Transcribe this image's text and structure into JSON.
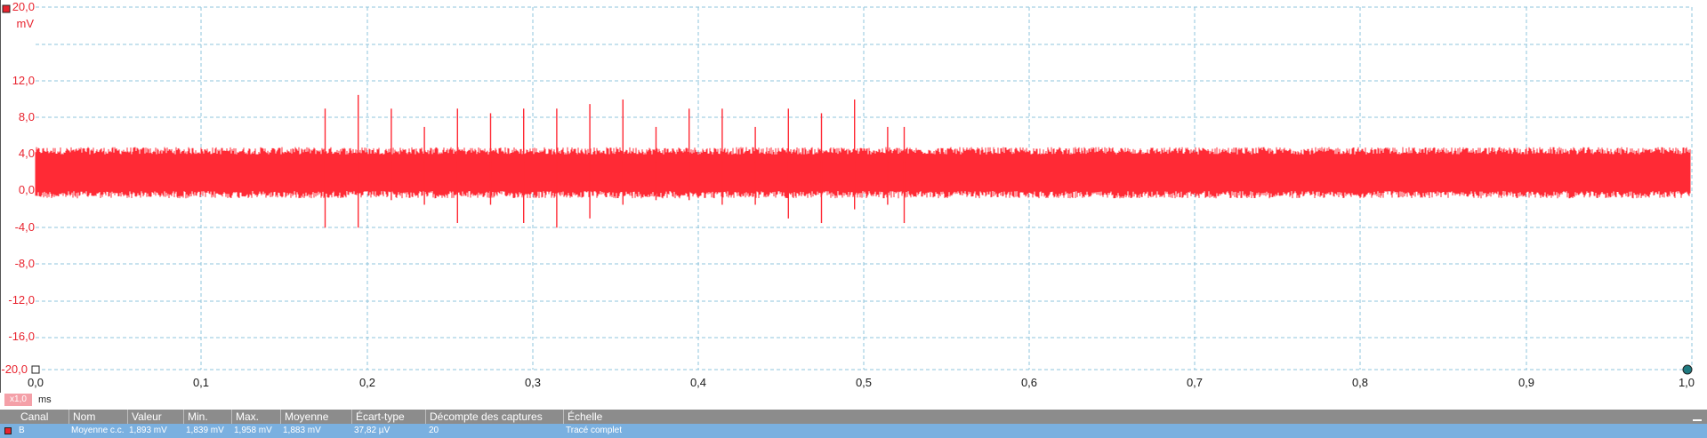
{
  "scope": {
    "y_unit": "mV",
    "x_unit": "ms",
    "zoom": "x1,0",
    "colors": {
      "trace": "#ff2a35",
      "axis_text": "#e8232e",
      "grid": "#8fc4dc",
      "header_bg": "#8c8c8c",
      "row_bg": "#7ab0e0"
    },
    "y_ticks": [
      "20,0",
      "12,0",
      "8,0",
      "4,0",
      "0,0",
      "-4,0",
      "-8,0",
      "-12,0",
      "-16,0",
      "-20,0"
    ],
    "x_ticks": [
      "0,0",
      "0,1",
      "0,2",
      "0,3",
      "0,4",
      "0,5",
      "0,6",
      "0,7",
      "0,8",
      "0,9",
      "1,0"
    ]
  },
  "chart_data": {
    "type": "line",
    "xlabel": "ms",
    "ylabel": "mV",
    "xlim": [
      0,
      1
    ],
    "ylim": [
      -20,
      20
    ],
    "grid": true,
    "series": [
      {
        "name": "B",
        "baseline_band": [
          0.0,
          4.0
        ],
        "mean": 1.883,
        "spikes": [
          {
            "x": 0.175,
            "y_max": 9.0,
            "y_min": -4.0
          },
          {
            "x": 0.195,
            "y_max": 10.5,
            "y_min": -4.0
          },
          {
            "x": 0.215,
            "y_max": 9.0,
            "y_min": -1.0
          },
          {
            "x": 0.235,
            "y_max": 7.0,
            "y_min": -1.5
          },
          {
            "x": 0.255,
            "y_max": 9.0,
            "y_min": -3.5
          },
          {
            "x": 0.275,
            "y_max": 8.5,
            "y_min": -1.5
          },
          {
            "x": 0.295,
            "y_max": 9.0,
            "y_min": -3.5
          },
          {
            "x": 0.315,
            "y_max": 9.0,
            "y_min": -4.0
          },
          {
            "x": 0.335,
            "y_max": 9.5,
            "y_min": -3.0
          },
          {
            "x": 0.355,
            "y_max": 10.0,
            "y_min": -1.5
          },
          {
            "x": 0.375,
            "y_max": 7.0,
            "y_min": -1.0
          },
          {
            "x": 0.395,
            "y_max": 9.0,
            "y_min": -1.0
          },
          {
            "x": 0.415,
            "y_max": 9.0,
            "y_min": -1.5
          },
          {
            "x": 0.435,
            "y_max": 7.0,
            "y_min": -1.5
          },
          {
            "x": 0.455,
            "y_max": 9.0,
            "y_min": -3.0
          },
          {
            "x": 0.475,
            "y_max": 8.5,
            "y_min": -3.5
          },
          {
            "x": 0.495,
            "y_max": 10.0,
            "y_min": -2.0
          },
          {
            "x": 0.515,
            "y_max": 7.0,
            "y_min": -1.5
          },
          {
            "x": 0.525,
            "y_max": 7.0,
            "y_min": -3.5
          }
        ]
      }
    ]
  },
  "measurements": {
    "headers": [
      "Canal",
      "Nom",
      "Valeur",
      "Min.",
      "Max.",
      "Moyenne",
      "Écart-type",
      "Décompte des captures",
      "Échelle"
    ],
    "row": [
      "B",
      "Moyenne c.c.",
      "1,893 mV",
      "1,839 mV",
      "1,958 mV",
      "1,883 mV",
      "37,82 µV",
      "20",
      "Tracé complet"
    ]
  }
}
